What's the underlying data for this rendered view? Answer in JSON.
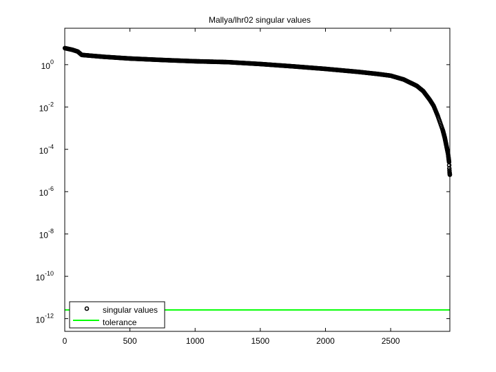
{
  "chart_data": {
    "type": "scatter",
    "title": "Mallya/lhr02 singular values",
    "xlabel": "",
    "ylabel": "",
    "xlim": [
      0,
      2954
    ],
    "ylim_log10": [
      -12.6,
      1.72
    ],
    "yscale": "log",
    "grid": false,
    "legend_placement": "bottom-left",
    "x_ticks": [
      0,
      500,
      1000,
      1500,
      2000,
      2500
    ],
    "x_tick_labels": [
      "0",
      "500",
      "1000",
      "1500",
      "2000",
      "2500"
    ],
    "y_tick_base": "10",
    "y_tick_exponents": [
      "0",
      "-2",
      "-4",
      "-6",
      "-8",
      "-10",
      "-12"
    ],
    "series": [
      {
        "name": "singular values",
        "marker": "circle",
        "color": "#000000",
        "index": [
          1,
          60,
          100,
          130,
          300,
          500,
          750,
          1000,
          1250,
          1500,
          1750,
          2000,
          2250,
          2400,
          2500,
          2600,
          2700,
          2750,
          2800,
          2830,
          2860,
          2880,
          2900,
          2915,
          2930,
          2940,
          2945,
          2948,
          2950,
          2952,
          2954
        ],
        "log10_values": [
          0.78,
          0.7,
          0.62,
          0.46,
          0.37,
          0.29,
          0.22,
          0.16,
          0.12,
          0.03,
          -0.08,
          -0.2,
          -0.34,
          -0.44,
          -0.52,
          -0.7,
          -1.0,
          -1.25,
          -1.66,
          -1.95,
          -2.4,
          -2.75,
          -3.1,
          -3.45,
          -3.9,
          -4.2,
          -4.45,
          -4.6,
          -4.9,
          -5.1,
          -5.2
        ]
      },
      {
        "name": "tolerance",
        "color": "#00ff00",
        "value": 2.6e-12
      }
    ]
  }
}
